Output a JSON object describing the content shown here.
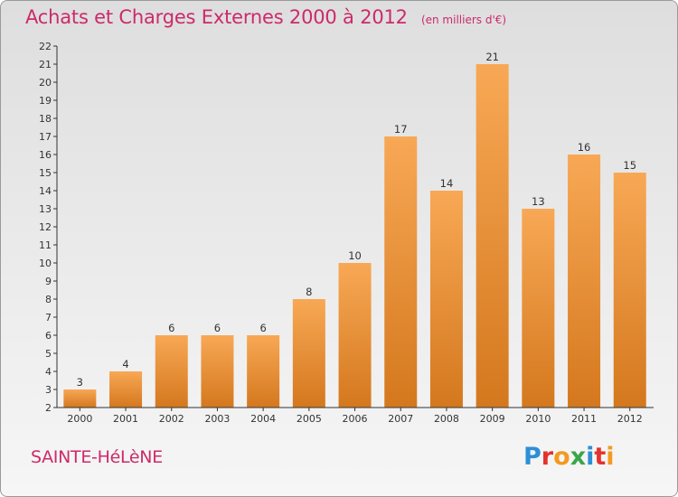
{
  "header": {
    "title": "Achats et Charges Externes 2000 à 2012",
    "subtitle": "(en milliers d'€)"
  },
  "footer": {
    "commune": "SAINTE-HéLèNE",
    "logo_letters": [
      "P",
      "r",
      "o",
      "x",
      "i",
      "t",
      "i"
    ]
  },
  "colors": {
    "title": "#cc2a6a",
    "bar_top": "#f8a855",
    "bar_bottom": "#d4781e",
    "axis": "#333333"
  },
  "chart_data": {
    "type": "bar",
    "categories": [
      "2000",
      "2001",
      "2002",
      "2003",
      "2004",
      "2005",
      "2006",
      "2007",
      "2008",
      "2009",
      "2010",
      "2011",
      "2012"
    ],
    "values": [
      3,
      4,
      6,
      6,
      6,
      8,
      10,
      17,
      14,
      21,
      13,
      16,
      15
    ],
    "value_labels": [
      "3",
      "4",
      "6",
      "6",
      "6",
      "8",
      "10",
      "17",
      "14",
      "21",
      "13",
      "16",
      "15"
    ],
    "title": "Achats et Charges Externes 2000 à 2012",
    "subtitle": "(en milliers d'€)",
    "xlabel": "",
    "ylabel": "",
    "ylim": [
      2,
      22
    ],
    "yticks": [
      "2",
      "3",
      "4",
      "5",
      "6",
      "7",
      "8",
      "9",
      "10",
      "11",
      "12",
      "13",
      "14",
      "15",
      "16",
      "17",
      "18",
      "19",
      "20",
      "21",
      "22"
    ],
    "grid": false,
    "legend": "none"
  }
}
